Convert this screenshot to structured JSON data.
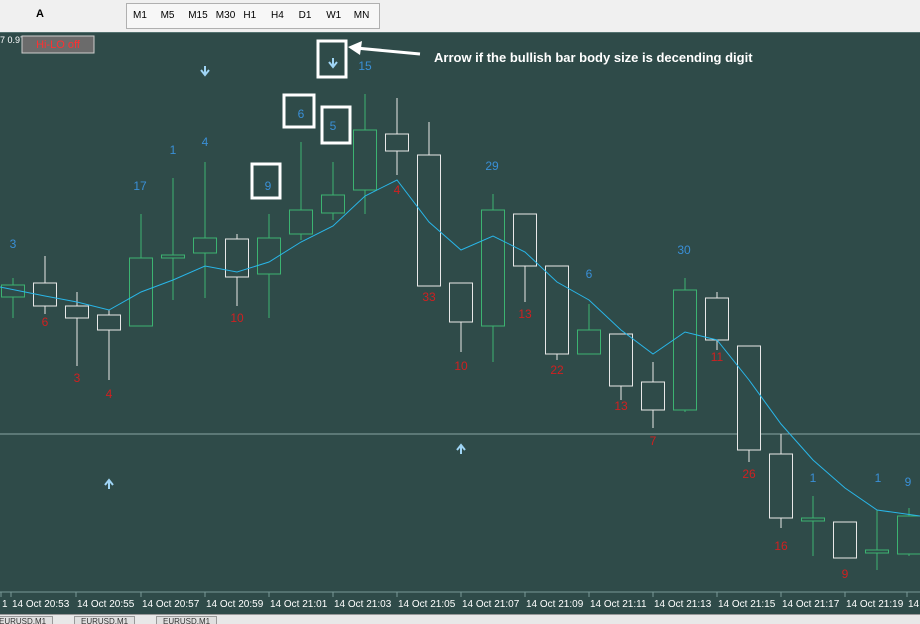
{
  "toolbar": {
    "text_tool": "A",
    "timeframes": [
      "M1",
      "M5",
      "M15",
      "M30",
      "H1",
      "H4",
      "D1",
      "W1",
      "MN"
    ]
  },
  "chart": {
    "price_info": "7 0.97",
    "button": "Hi-LO off",
    "annotation": "Arrow if the bullish bar body size is decending digit",
    "labels_upper": [
      "3",
      "17",
      "1",
      "4",
      "9",
      "6",
      "5",
      "15",
      "29",
      "6",
      "30",
      "1",
      "1",
      "9"
    ],
    "labels_lower": [
      "6",
      "3",
      "4",
      "10",
      "4",
      "33",
      "10",
      "13",
      "22",
      "13",
      "7",
      "11",
      "26",
      "16",
      "9"
    ],
    "time_labels": [
      "1",
      "14 Oct 20:53",
      "14 Oct 20:55",
      "14 Oct 20:57",
      "14 Oct 20:59",
      "14 Oct 21:01",
      "14 Oct 21:03",
      "14 Oct 21:05",
      "14 Oct 21:07",
      "14 Oct 21:09",
      "14 Oct 21:11",
      "14 Oct 21:13",
      "14 Oct 21:15",
      "14 Oct 21:17",
      "14 Oct 21:19",
      "14"
    ]
  },
  "tabs": [
    "EURUSD,M1",
    "EURUSD,M1",
    "EURUSD,M1"
  ]
}
